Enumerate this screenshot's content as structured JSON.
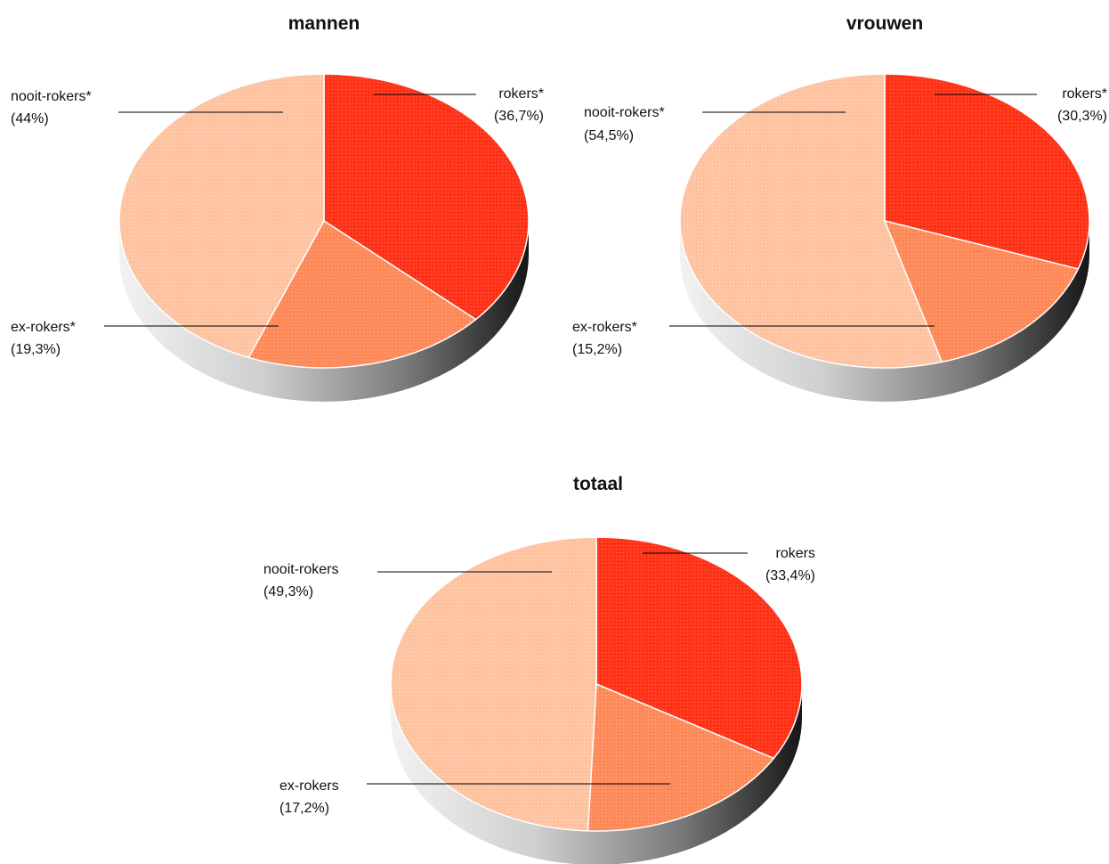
{
  "chart_data": [
    {
      "type": "pie",
      "title": "mannen",
      "categories": [
        "rokers*",
        "ex-rokers*",
        "nooit-rokers*"
      ],
      "values": [
        36.7,
        19.3,
        44.0
      ],
      "value_labels": [
        "(36,7%)",
        "(19,3%)",
        "(44%)"
      ],
      "colors": [
        "#ff3318",
        "#ff8a5a",
        "#ffc4a2"
      ]
    },
    {
      "type": "pie",
      "title": "vrouwen",
      "categories": [
        "rokers*",
        "ex-rokers*",
        "nooit-rokers*"
      ],
      "values": [
        30.3,
        15.2,
        54.5
      ],
      "value_labels": [
        "(30,3%)",
        "(15,2%)",
        "(54,5%)"
      ],
      "colors": [
        "#ff3318",
        "#ff8a5a",
        "#ffc4a2"
      ]
    },
    {
      "type": "pie",
      "title": "totaal",
      "categories": [
        "rokers",
        "ex-rokers",
        "nooit-rokers"
      ],
      "values": [
        33.4,
        17.2,
        49.3
      ],
      "value_labels": [
        "(33,4%)",
        "(17,2%)",
        "(49,3%)"
      ],
      "colors": [
        "#ff3318",
        "#ff8a5a",
        "#ffc4a2"
      ]
    }
  ]
}
